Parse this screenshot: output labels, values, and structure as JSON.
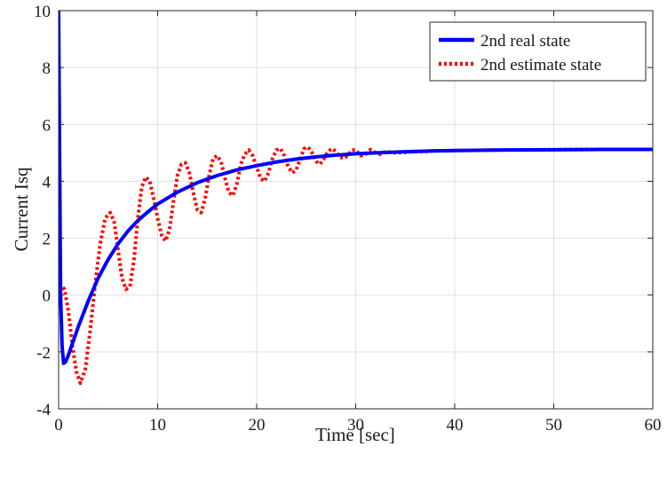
{
  "chart_data": {
    "type": "line",
    "title": "",
    "xlabel": "Time [sec]",
    "ylabel": "Current Isq",
    "xlim": [
      0,
      60
    ],
    "ylim": [
      -4,
      10
    ],
    "xticks": [
      0,
      10,
      20,
      30,
      40,
      50,
      60
    ],
    "yticks": [
      -4,
      -2,
      0,
      2,
      4,
      6,
      8,
      10
    ],
    "grid": true,
    "legend_position": "top-right",
    "series": [
      {
        "name": "2nd real state",
        "color": "#0000ff",
        "style": "solid",
        "x": [
          0,
          0.1,
          0.2,
          0.35,
          0.5,
          0.7,
          1,
          1.5,
          2,
          2.5,
          3,
          3.5,
          4,
          5,
          6,
          7,
          8,
          9,
          10,
          12,
          14,
          16,
          18,
          20,
          22,
          24,
          26,
          28,
          30,
          32,
          35,
          38,
          40,
          45,
          50,
          55,
          60
        ],
        "y": [
          10,
          5,
          0,
          -1.8,
          -2.4,
          -2.35,
          -2.1,
          -1.6,
          -1.1,
          -0.65,
          -0.2,
          0.2,
          0.6,
          1.25,
          1.8,
          2.25,
          2.62,
          2.92,
          3.2,
          3.62,
          3.95,
          4.2,
          4.4,
          4.55,
          4.68,
          4.78,
          4.86,
          4.92,
          4.97,
          5.0,
          5.04,
          5.07,
          5.08,
          5.1,
          5.11,
          5.12,
          5.12
        ]
      },
      {
        "name": "2nd estimate state",
        "color": "#ff0000",
        "style": "dotted",
        "x": [
          0,
          0.3,
          0.6,
          1.0,
          1.4,
          1.8,
          2.2,
          2.7,
          3.2,
          3.7,
          4.2,
          4.7,
          5.2,
          5.6,
          6.0,
          6.4,
          6.8,
          7.2,
          7.6,
          8.0,
          8.4,
          8.8,
          9.2,
          9.6,
          10.0,
          10.4,
          10.8,
          11.2,
          11.6,
          12.0,
          12.4,
          12.8,
          13.2,
          13.6,
          14.0,
          14.4,
          14.8,
          15.2,
          15.6,
          16.0,
          16.4,
          16.8,
          17.2,
          17.6,
          18.0,
          18.4,
          18.8,
          19.2,
          19.6,
          20.0,
          20.4,
          20.8,
          21.2,
          21.6,
          22.0,
          22.4,
          22.8,
          23.2,
          23.6,
          24.0,
          24.4,
          24.8,
          25.2,
          25.6,
          26.0,
          26.4,
          26.8,
          27.2,
          27.6,
          28.0,
          28.4,
          28.8,
          29.2,
          29.6,
          30.0,
          30.5,
          31.0,
          31.5,
          32.0,
          32.5,
          33.0,
          34.0,
          35.0,
          36.0,
          37.0,
          38.0,
          40.0,
          45.0,
          50.0,
          55.0,
          60.0
        ],
        "y": [
          0.0,
          0.3,
          0.2,
          -0.6,
          -1.8,
          -2.7,
          -3.1,
          -2.6,
          -1.2,
          0.4,
          1.8,
          2.7,
          2.9,
          2.6,
          1.6,
          0.6,
          0.2,
          0.3,
          1.2,
          2.7,
          3.8,
          4.15,
          4.0,
          3.4,
          2.7,
          2.1,
          1.9,
          2.3,
          3.3,
          4.2,
          4.6,
          4.65,
          4.3,
          3.6,
          3.0,
          2.9,
          3.4,
          4.2,
          4.8,
          4.9,
          4.7,
          4.1,
          3.6,
          3.5,
          3.9,
          4.6,
          4.95,
          5.1,
          4.9,
          4.5,
          4.1,
          4.0,
          4.3,
          4.8,
          5.1,
          5.15,
          4.9,
          4.5,
          4.3,
          4.4,
          4.8,
          5.15,
          5.2,
          5.0,
          4.7,
          4.6,
          4.8,
          5.05,
          5.15,
          5.05,
          4.85,
          4.8,
          4.9,
          5.1,
          5.1,
          4.9,
          4.95,
          5.12,
          5.0,
          4.95,
          5.05,
          5.0,
          5.02,
          5.05,
          5.05,
          5.07,
          5.08,
          5.1,
          5.11,
          5.12,
          5.12
        ]
      }
    ]
  }
}
